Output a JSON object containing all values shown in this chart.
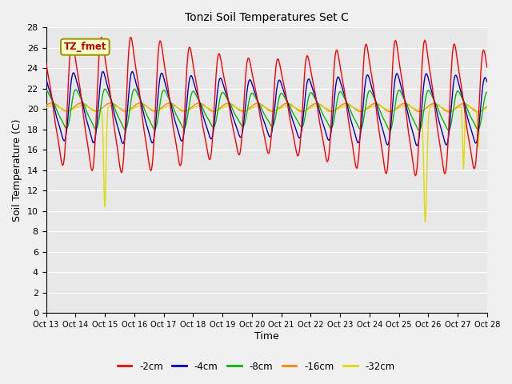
{
  "title": "Tonzi Soil Temperatures Set C",
  "xlabel": "Time",
  "ylabel": "Soil Temperature (C)",
  "xlim": [
    0,
    15
  ],
  "ylim": [
    0,
    28
  ],
  "yticks": [
    0,
    2,
    4,
    6,
    8,
    10,
    12,
    14,
    16,
    18,
    20,
    22,
    24,
    26,
    28
  ],
  "xtick_labels": [
    "Oct 13",
    "Oct 14",
    "Oct 15",
    "Oct 16",
    "Oct 17",
    "Oct 18",
    "Oct 19",
    "Oct 20",
    "Oct 21",
    "Oct 22",
    "Oct 23",
    "Oct 24",
    "Oct 25",
    "Oct 26",
    "Oct 27",
    "Oct 28"
  ],
  "xtick_positions": [
    0,
    1,
    2,
    3,
    4,
    5,
    6,
    7,
    8,
    9,
    10,
    11,
    12,
    13,
    14,
    15
  ],
  "series_colors": [
    "#ff0000",
    "#0000cc",
    "#00bb00",
    "#ff8800",
    "#dddd00"
  ],
  "series_labels": [
    "-2cm",
    "-4cm",
    "-8cm",
    "-16cm",
    "-32cm"
  ],
  "legend_label": "TZ_fmet",
  "legend_box_color": "#ffffcc",
  "legend_box_edge": "#999900",
  "plot_bg_color": "#e8e8e8",
  "fig_bg_color": "#f0f0f0",
  "grid_color": "#ffffff",
  "n_points": 3000
}
